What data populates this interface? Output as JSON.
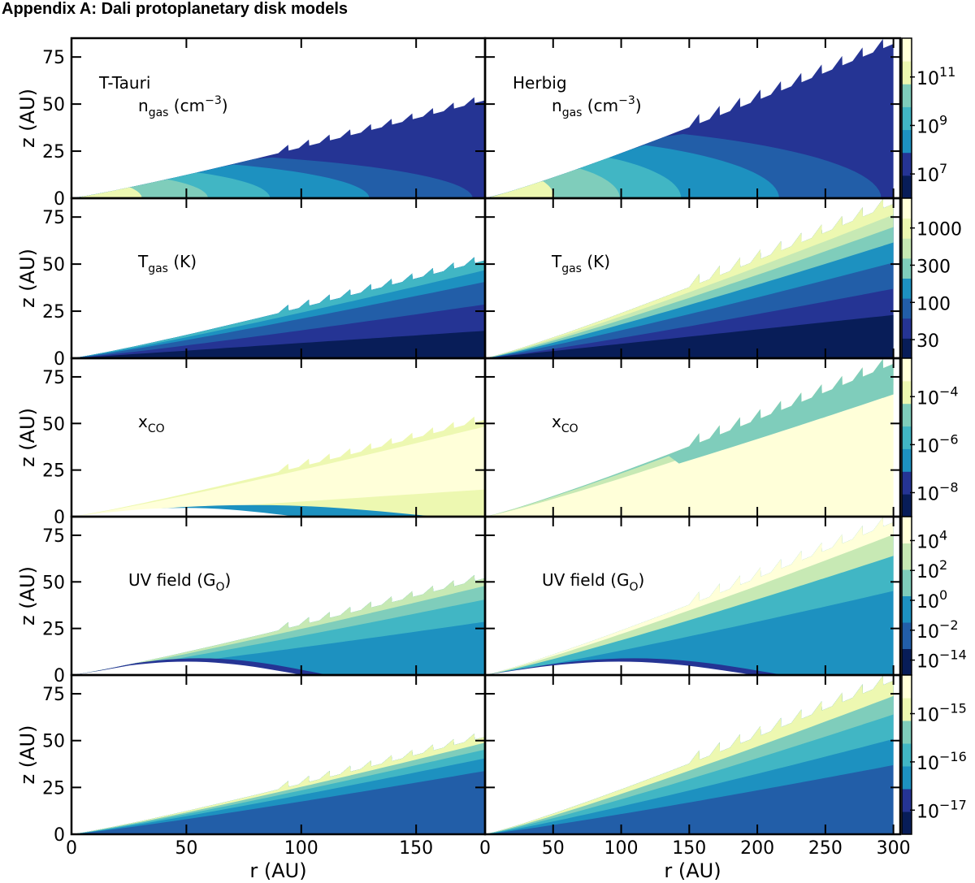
{
  "page_title": "Appendix A:   Dali protoplanetary disk models",
  "chart_data": {
    "type": "filled-contour grid",
    "x_label": "r (AU)",
    "y_label": "z (AU)",
    "columns": [
      {
        "name": "T-Tauri",
        "xlim": [
          0,
          180
        ],
        "x_ticks": [
          "0",
          "50",
          "100",
          "150"
        ],
        "x_tick_values": [
          0,
          50,
          100,
          150
        ],
        "r_max": 180,
        "z_max": 52
      },
      {
        "name": "Herbig",
        "xlim": [
          0,
          305
        ],
        "x_ticks": [
          "0",
          "50",
          "100",
          "150",
          "200",
          "250",
          "300"
        ],
        "x_tick_values": [
          0,
          50,
          100,
          150,
          200,
          250,
          300
        ],
        "r_max": 300,
        "z_max": 82
      }
    ],
    "ylim": [
      0,
      85
    ],
    "y_ticks": [
      "0",
      "25",
      "50",
      "75"
    ],
    "y_tick_values": [
      0,
      25,
      50,
      75
    ],
    "rows": [
      {
        "quantity": "n_gas",
        "label_main": "n",
        "label_sub": "gas",
        "label_rest": " (cm",
        "label_sup": "−3",
        "label_end": ")",
        "colorbar_ticks": [
          {
            "base": "10",
            "exp": "11"
          },
          {
            "base": "10",
            "exp": "9"
          },
          {
            "base": "10",
            "exp": "7"
          }
        ],
        "colorbar_levels": 7
      },
      {
        "quantity": "T_gas",
        "label_main": "T",
        "label_sub": "gas",
        "label_rest": " (K)",
        "label_sup": "",
        "label_end": "",
        "colorbar_ticks": [
          {
            "base": "1000",
            "exp": ""
          },
          {
            "base": "300",
            "exp": ""
          },
          {
            "base": "100",
            "exp": ""
          },
          {
            "base": "30",
            "exp": ""
          }
        ],
        "colorbar_levels": 8
      },
      {
        "quantity": "x_CO",
        "label_main": "x",
        "label_sub": "CO",
        "label_rest": "",
        "label_sup": "",
        "label_end": "",
        "colorbar_ticks": [
          {
            "base": "10",
            "exp": "−4"
          },
          {
            "base": "10",
            "exp": "−6"
          },
          {
            "base": "10",
            "exp": "−8"
          }
        ],
        "colorbar_levels": 7
      },
      {
        "quantity": "UV field",
        "label_main": "UV field (G",
        "label_sub": "O",
        "label_rest": ")",
        "label_sup": "",
        "label_end": "",
        "colorbar_ticks": [
          {
            "base": "10",
            "exp": "4"
          },
          {
            "base": "10",
            "exp": "2"
          },
          {
            "base": "10",
            "exp": "0"
          },
          {
            "base": "10",
            "exp": "−2"
          },
          {
            "base": "10",
            "exp": "−14"
          }
        ],
        "colorbar_levels": 6
      },
      {
        "quantity": "unlabeled",
        "label_main": "",
        "label_sub": "",
        "label_rest": "",
        "label_sup": "",
        "label_end": "",
        "colorbar_ticks": [
          {
            "base": "10",
            "exp": "−15"
          },
          {
            "base": "10",
            "exp": "−16"
          },
          {
            "base": "10",
            "exp": "−17"
          }
        ],
        "colorbar_levels": 7
      }
    ],
    "colormap": [
      "#ffffd9",
      "#edf8b1",
      "#c7e9b4",
      "#7fcdbb",
      "#41b6c4",
      "#1d91c0",
      "#225ea8",
      "#253494",
      "#081d58"
    ]
  }
}
